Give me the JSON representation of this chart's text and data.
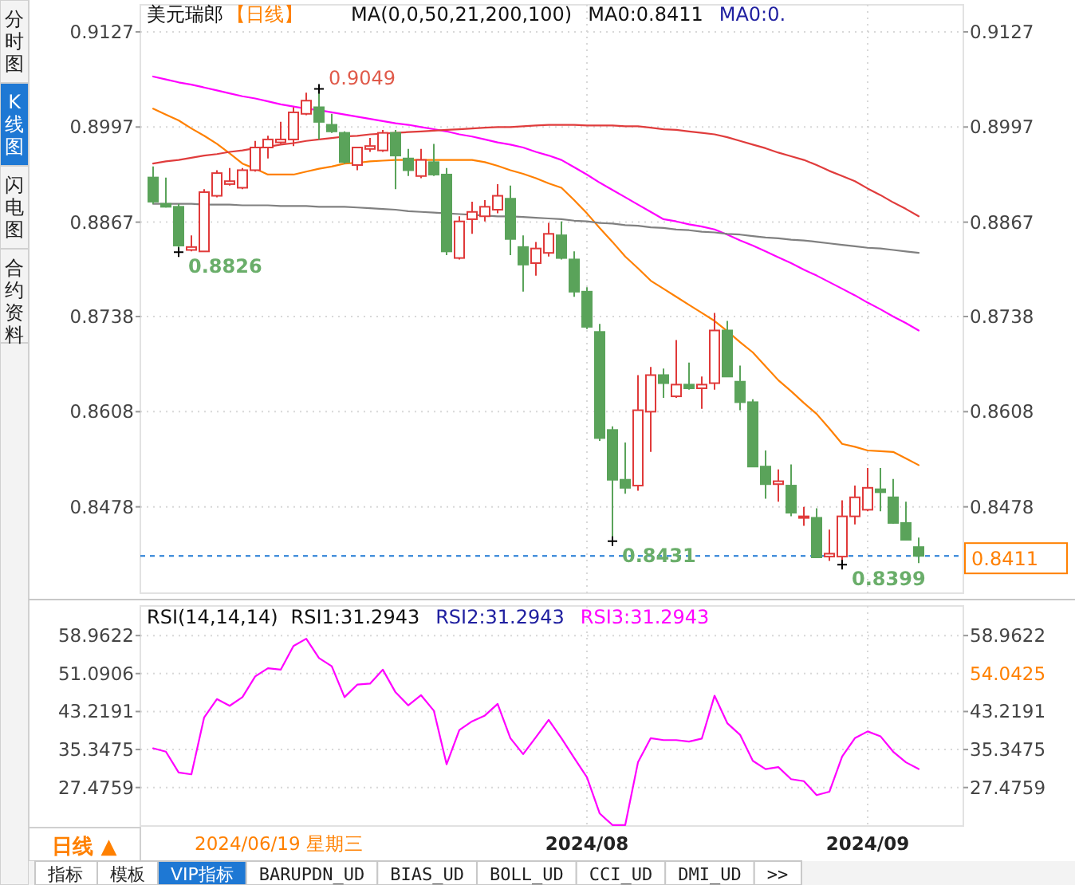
{
  "chart_data": [
    {
      "type": "candlestick",
      "title": "美元瑞郎",
      "subtitle": "【日线】",
      "categories": [
        null,
        null,
        null,
        null,
        null,
        null,
        null,
        null,
        null,
        null,
        null,
        null,
        null,
        null,
        null,
        null,
        null,
        null,
        null,
        null,
        null,
        null,
        null,
        null,
        null,
        null,
        null,
        null,
        null,
        null,
        null,
        null,
        null,
        null,
        "2024/08",
        null,
        null,
        null,
        null,
        null,
        null,
        null,
        null,
        null,
        null,
        null,
        null,
        null,
        null,
        null,
        null,
        null,
        null,
        null,
        null,
        null,
        "2024/09",
        null,
        null,
        null,
        null
      ],
      "ohlc": [
        [
          0.8928,
          0.8943,
          0.8892,
          0.8895
        ],
        [
          0.8892,
          0.8928,
          0.8887,
          0.8888
        ],
        [
          0.8888,
          0.8892,
          0.8826,
          0.8835
        ],
        [
          0.8829,
          0.8849,
          0.8827,
          0.8833
        ],
        [
          0.8827,
          0.8912,
          0.8827,
          0.8908
        ],
        [
          0.8903,
          0.8938,
          0.8901,
          0.8934
        ],
        [
          0.8919,
          0.8941,
          0.8917,
          0.8923
        ],
        [
          0.8914,
          0.8941,
          0.8912,
          0.8938
        ],
        [
          0.8938,
          0.8978,
          0.8936,
          0.8969
        ],
        [
          0.8969,
          0.8985,
          0.8954,
          0.898
        ],
        [
          0.8976,
          0.9004,
          0.8974,
          0.898
        ],
        [
          0.898,
          0.9024,
          0.8971,
          0.9017
        ],
        [
          0.9015,
          0.9044,
          0.9013,
          0.9033
        ],
        [
          0.9024,
          0.9049,
          0.898,
          0.9004
        ],
        [
          0.9,
          0.9015,
          0.8989,
          0.8991
        ],
        [
          0.8989,
          0.8991,
          0.8947,
          0.8949
        ],
        [
          0.8945,
          0.8969,
          0.8938,
          0.8969
        ],
        [
          0.8967,
          0.8982,
          0.8963,
          0.8971
        ],
        [
          0.8965,
          0.8993,
          0.8963,
          0.8989
        ],
        [
          0.8989,
          0.8993,
          0.8912,
          0.8958
        ],
        [
          0.8954,
          0.8967,
          0.893,
          0.8938
        ],
        [
          0.893,
          0.8967,
          0.8927,
          0.8952
        ],
        [
          0.8949,
          0.8974,
          0.893,
          0.8932
        ],
        [
          0.8932,
          0.8941,
          0.8822,
          0.8827
        ],
        [
          0.8818,
          0.8875,
          0.8816,
          0.8868
        ],
        [
          0.8871,
          0.8895,
          0.8851,
          0.8881
        ],
        [
          0.8875,
          0.8897,
          0.8868,
          0.8888
        ],
        [
          0.8884,
          0.8919,
          0.8879,
          0.8903
        ],
        [
          0.8899,
          0.8917,
          0.8822,
          0.8844
        ],
        [
          0.8833,
          0.8849,
          0.8772,
          0.8809
        ],
        [
          0.8811,
          0.884,
          0.8794,
          0.8831
        ],
        [
          0.8825,
          0.8866,
          0.882,
          0.8851
        ],
        [
          0.8849,
          0.8868,
          0.8816,
          0.8818
        ],
        [
          0.8816,
          0.8827,
          0.8765,
          0.8772
        ],
        [
          0.8772,
          0.8778,
          0.8721,
          0.8724
        ],
        [
          0.8717,
          0.8728,
          0.8568,
          0.8572
        ],
        [
          0.8583,
          0.8588,
          0.8431,
          0.8515
        ],
        [
          0.8515,
          0.8566,
          0.8496,
          0.8504
        ],
        [
          0.8507,
          0.8658,
          0.85,
          0.861
        ],
        [
          0.8608,
          0.8669,
          0.8553,
          0.8658
        ],
        [
          0.8658,
          0.8667,
          0.8627,
          0.8647
        ],
        [
          0.8629,
          0.8706,
          0.8627,
          0.8645
        ],
        [
          0.8645,
          0.8675,
          0.8638,
          0.864
        ],
        [
          0.864,
          0.8656,
          0.8612,
          0.8645
        ],
        [
          0.8647,
          0.8743,
          0.8638,
          0.8719
        ],
        [
          0.8719,
          0.8732,
          0.8656,
          0.8656
        ],
        [
          0.8649,
          0.8671,
          0.861,
          0.8621
        ],
        [
          0.8621,
          0.8625,
          0.8532,
          0.8533
        ],
        [
          0.8533,
          0.8555,
          0.8489,
          0.8509
        ],
        [
          0.8509,
          0.8529,
          0.8485,
          0.8513
        ],
        [
          0.8507,
          0.8536,
          0.8465,
          0.847
        ],
        [
          0.8463,
          0.8478,
          0.8452,
          0.8465
        ],
        [
          0.8463,
          0.8476,
          0.8408,
          0.8409
        ],
        [
          0.841,
          0.8447,
          0.8404,
          0.8414
        ],
        [
          0.841,
          0.8487,
          0.8399,
          0.8465
        ],
        [
          0.8465,
          0.8507,
          0.8454,
          0.8491
        ],
        [
          0.8474,
          0.8531,
          0.8472,
          0.8504
        ],
        [
          0.8502,
          0.8531,
          0.8472,
          0.8498
        ],
        [
          0.8491,
          0.8516,
          0.8455,
          0.8456
        ],
        [
          0.8456,
          0.8485,
          0.8432,
          0.8433
        ],
        [
          0.8423,
          0.8436,
          0.8401,
          0.8411
        ]
      ],
      "series": [
        {
          "type": "line",
          "color": "#ff8000",
          "values": [
            0.9022,
            0.9014,
            0.9006,
            0.8995,
            0.8985,
            0.8974,
            0.8961,
            0.8947,
            0.894,
            0.8932,
            0.8932,
            0.8932,
            0.8936,
            0.894,
            0.8943,
            0.8947,
            0.8948,
            0.895,
            0.8951,
            0.8952,
            0.8952,
            0.8952,
            0.8952,
            0.8952,
            0.8952,
            0.8952,
            0.8949,
            0.8944,
            0.8938,
            0.8933,
            0.8927,
            0.892,
            0.8914,
            0.8897,
            0.8879,
            0.8859,
            0.884,
            0.882,
            0.8804,
            0.8787,
            0.8776,
            0.8765,
            0.8754,
            0.8743,
            0.8732,
            0.8718,
            0.8703,
            0.8689,
            0.867,
            0.8651,
            0.8636,
            0.862,
            0.8605,
            0.8585,
            0.8564,
            0.856,
            0.8555,
            0.8554,
            0.8553,
            0.8544,
            0.8535
          ]
        },
        {
          "type": "line",
          "color": "#ff00ff",
          "values": [
            0.9066,
            0.9062,
            0.9058,
            0.9055,
            0.9051,
            0.9047,
            0.9043,
            0.9039,
            0.9036,
            0.9032,
            0.9028,
            0.9025,
            0.9022,
            0.902,
            0.9017,
            0.9014,
            0.9011,
            0.9008,
            0.9005,
            0.9002,
            0.9,
            0.8997,
            0.8994,
            0.8991,
            0.8987,
            0.8984,
            0.898,
            0.8976,
            0.8973,
            0.8969,
            0.8963,
            0.8958,
            0.8952,
            0.8942,
            0.8932,
            0.8921,
            0.8911,
            0.8901,
            0.8891,
            0.8881,
            0.8871,
            0.8868,
            0.8864,
            0.8861,
            0.8857,
            0.885,
            0.8842,
            0.8835,
            0.8827,
            0.8819,
            0.8811,
            0.8802,
            0.8794,
            0.8785,
            0.8776,
            0.8767,
            0.8757,
            0.8748,
            0.8738,
            0.8729,
            0.8719
          ]
        },
        {
          "type": "line",
          "color": "#e03c3c",
          "values": [
            0.8947,
            0.895,
            0.8952,
            0.8955,
            0.8958,
            0.896,
            0.8963,
            0.8965,
            0.8968,
            0.897,
            0.8973,
            0.8975,
            0.8978,
            0.898,
            0.8982,
            0.8984,
            0.8985,
            0.8987,
            0.8988,
            0.8989,
            0.899,
            0.8991,
            0.8992,
            0.8993,
            0.8994,
            0.8995,
            0.8996,
            0.8997,
            0.8997,
            0.8998,
            0.8999,
            0.9,
            0.9,
            0.9,
            0.8999,
            0.8999,
            0.8999,
            0.8998,
            0.8998,
            0.8996,
            0.8994,
            0.8993,
            0.8991,
            0.8989,
            0.8987,
            0.8983,
            0.8978,
            0.8973,
            0.8968,
            0.8962,
            0.8957,
            0.8952,
            0.8945,
            0.8937,
            0.893,
            0.8923,
            0.8913,
            0.8904,
            0.8894,
            0.8885,
            0.8875
          ]
        },
        {
          "type": "line",
          "color": "#808080",
          "values": [
            0.8892,
            0.8892,
            0.8892,
            0.8892,
            0.8891,
            0.8891,
            0.8891,
            0.889,
            0.889,
            0.889,
            0.8889,
            0.8889,
            0.8889,
            0.8888,
            0.8888,
            0.8888,
            0.8887,
            0.8886,
            0.8885,
            0.8884,
            0.8882,
            0.8881,
            0.888,
            0.8879,
            0.8878,
            0.8877,
            0.8876,
            0.8875,
            0.8875,
            0.8874,
            0.8873,
            0.8872,
            0.8871,
            0.8869,
            0.8868,
            0.8866,
            0.8865,
            0.8863,
            0.8862,
            0.886,
            0.8859,
            0.8857,
            0.8856,
            0.8854,
            0.8853,
            0.8851,
            0.885,
            0.8848,
            0.8846,
            0.8845,
            0.8843,
            0.8842,
            0.884,
            0.8838,
            0.8836,
            0.8834,
            0.8832,
            0.8831,
            0.8829,
            0.8827,
            0.8825
          ]
        }
      ],
      "ylim": [
        0.836,
        0.9164
      ],
      "yticks": [
        0.8478,
        0.8608,
        0.8738,
        0.8867,
        0.8997,
        0.9127
      ],
      "y2lim": [
        0.836,
        0.9164
      ],
      "y2ticks": [
        0.8478,
        0.8608,
        0.8738,
        0.8867,
        0.8997,
        0.9127
      ],
      "tick_labels": "y",
      "grid": true,
      "ref_lines": [
        {
          "axis": "y",
          "value": 0.8411,
          "label": "0.8411",
          "color": "#1e78d4",
          "line_style": "dashed"
        }
      ],
      "annotations": [
        "MA(0,0,50,21,200,100)",
        "MA0:0.8411",
        "MA0:0.",
        "0.9049",
        "0.8826",
        "0.8431",
        "0.8399"
      ]
    },
    {
      "type": "line",
      "title": "RSI(14,14,14)",
      "categories": [
        null,
        null,
        null,
        null,
        null,
        null,
        null,
        null,
        null,
        null,
        null,
        null,
        null,
        null,
        null,
        null,
        null,
        null,
        null,
        null,
        null,
        null,
        null,
        null,
        null,
        null,
        null,
        null,
        null,
        null,
        null,
        null,
        null,
        null,
        "2024/08",
        null,
        null,
        null,
        null,
        null,
        null,
        null,
        null,
        null,
        null,
        null,
        null,
        null,
        null,
        null,
        null,
        null,
        null,
        null,
        null,
        null,
        "2024/09",
        null,
        null,
        null,
        null
      ],
      "series": [
        {
          "color": "#ff00ff",
          "values": [
            35.6,
            34.9,
            30.6,
            30.2,
            42.0,
            45.8,
            44.4,
            46.2,
            50.5,
            52.2,
            51.9,
            56.8,
            58.3,
            54.3,
            52.6,
            46.2,
            48.8,
            49.0,
            51.9,
            47.2,
            44.5,
            46.6,
            43.4,
            32.3,
            39.4,
            41.2,
            42.4,
            44.8,
            37.7,
            34.4,
            37.9,
            41.5,
            37.7,
            33.6,
            29.6,
            22.1,
            19.7,
            19.7,
            32.7,
            37.7,
            37.3,
            37.3,
            37.0,
            37.6,
            46.5,
            40.8,
            38.4,
            33.0,
            31.3,
            31.7,
            29.2,
            28.8,
            25.9,
            26.6,
            33.9,
            37.7,
            39.1,
            38.1,
            34.9,
            32.7,
            31.3
          ]
        }
      ],
      "ylim": [
        19.5,
        65.1
      ],
      "yticks": [
        27.4759,
        35.3475,
        43.2191,
        51.0906,
        58.9622
      ],
      "y2lim": [
        19.5,
        65.1
      ],
      "y2ticks": [
        27.4759,
        35.3475,
        43.2191,
        58.9622
      ],
      "grid": true,
      "annotations": [
        "RSI1:31.2943",
        "RSI2:31.2943",
        "RSI3:31.2943",
        "54.0425",
        "2024/06/19 星期三"
      ]
    },
    {
      "type": "other",
      "annotations": [
        "分时图",
        "K线图",
        "闪电图",
        "合约资料",
        "日线 ▲",
        "指标",
        "模板",
        "VIP指标",
        "BARUPDN_UD",
        "BIAS_UD",
        "BOLL_UD",
        "CCI_UD",
        "DMI_UD",
        ">>"
      ]
    }
  ]
}
